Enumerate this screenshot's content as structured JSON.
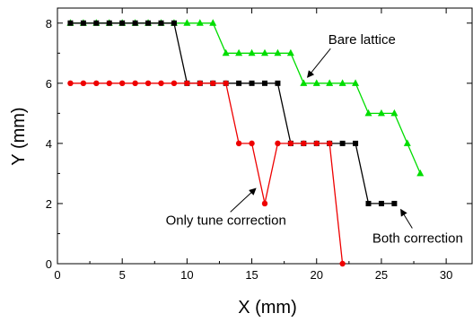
{
  "chart_data": {
    "type": "line",
    "title": "",
    "xlabel": "X (mm)",
    "ylabel": "Y (mm)",
    "xlim": [
      0,
      32
    ],
    "ylim": [
      0,
      8.5
    ],
    "xticks": [
      0,
      5,
      10,
      15,
      20,
      25,
      30
    ],
    "yticks": [
      0,
      2,
      4,
      6,
      8
    ],
    "grid": false,
    "series": [
      {
        "marker": "triangle",
        "color": "#00dd00",
        "x": [
          1,
          2,
          3,
          4,
          5,
          6,
          7,
          8,
          9,
          10,
          11,
          12,
          13,
          14,
          15,
          16,
          17,
          18,
          19,
          20,
          21,
          22,
          23,
          24,
          25,
          26,
          27,
          28
        ],
        "y": [
          8,
          8,
          8,
          8,
          8,
          8,
          8,
          8,
          8,
          8,
          8,
          8,
          7,
          7,
          7,
          7,
          7,
          7,
          6,
          6,
          6,
          6,
          6,
          5,
          5,
          5,
          4,
          3
        ]
      },
      {
        "marker": "square",
        "color": "#000000",
        "x": [
          1,
          2,
          3,
          4,
          5,
          6,
          7,
          8,
          9,
          10,
          11,
          12,
          13,
          14,
          15,
          16,
          17,
          18,
          19,
          20,
          21,
          22,
          23,
          24,
          25,
          26
        ],
        "y": [
          8,
          8,
          8,
          8,
          8,
          8,
          8,
          8,
          8,
          6,
          6,
          6,
          6,
          6,
          6,
          6,
          6,
          4,
          4,
          4,
          4,
          4,
          4,
          2,
          2,
          2
        ]
      },
      {
        "marker": "circle",
        "color": "#ee0000",
        "x": [
          1,
          2,
          3,
          4,
          5,
          6,
          7,
          8,
          9,
          10,
          11,
          12,
          13,
          14,
          15,
          16,
          17,
          18,
          19,
          20,
          21,
          22
        ],
        "y": [
          6,
          6,
          6,
          6,
          6,
          6,
          6,
          6,
          6,
          6,
          6,
          6,
          6,
          4,
          4,
          2,
          4,
          4,
          4,
          4,
          4,
          0
        ]
      }
    ],
    "annotations": [
      {
        "text": "Bare lattice",
        "x": 23.5,
        "y": 7.3,
        "arrow_to": [
          19.3,
          6.2
        ]
      },
      {
        "text": "Only tune correction",
        "x": 13,
        "y": 1.3,
        "arrow_to": [
          15.3,
          2.5
        ]
      },
      {
        "text": "Both correction",
        "x": 27.8,
        "y": 0.7,
        "arrow_to": [
          26.5,
          1.8
        ]
      }
    ]
  }
}
